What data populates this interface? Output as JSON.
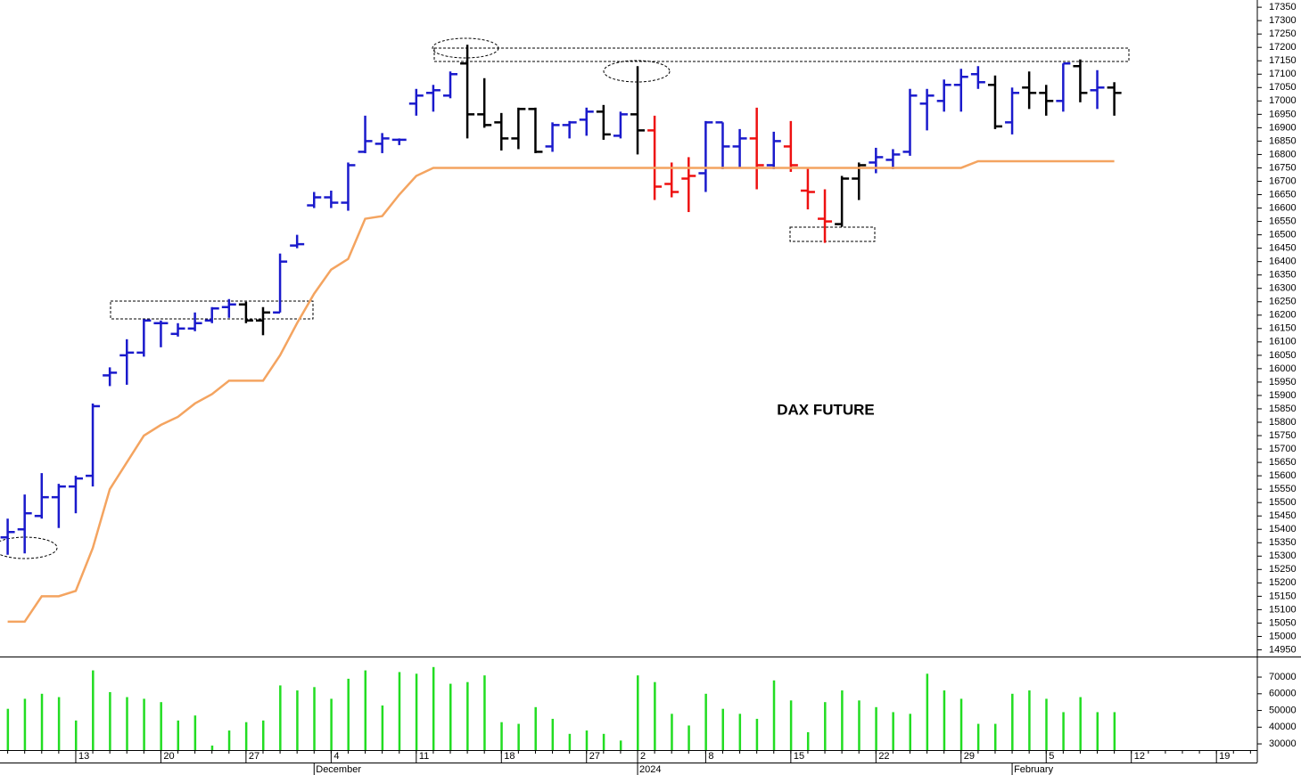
{
  "chart_data": [
    {
      "type": "ohlc",
      "title": "DAX FUTURE",
      "open": [
        15370,
        15400,
        15450,
        15520,
        15560,
        15600,
        15975,
        16050,
        16060,
        16170,
        16130,
        16150,
        16180,
        16230,
        16240,
        16180,
        16210,
        16460,
        16610,
        16640,
        16620,
        16810,
        16840,
        16855,
        16990,
        17030,
        17020,
        17140,
        16950,
        16920,
        16860,
        16970,
        16830,
        16910,
        16930,
        16960,
        16870,
        16950,
        16890,
        16690,
        16710,
        16730,
        16920,
        16830,
        16860,
        16760,
        16830,
        16665,
        16560,
        16540,
        16710,
        16770,
        16780,
        16810,
        16990,
        17000,
        17060,
        17100,
        17060,
        16920,
        17050,
        17030,
        17000,
        17130,
        17040,
        17050
      ],
      "high": [
        15440,
        15530,
        15610,
        15570,
        15600,
        15870,
        16005,
        16110,
        16185,
        16180,
        16170,
        16210,
        16230,
        16260,
        16250,
        16230,
        16430,
        16500,
        16660,
        16665,
        16770,
        16945,
        16880,
        16860,
        17045,
        17060,
        17110,
        17210,
        17085,
        16955,
        16975,
        16975,
        16920,
        16925,
        16975,
        16985,
        16960,
        17130,
        16945,
        16770,
        16790,
        16925,
        16920,
        16895,
        16975,
        16885,
        16925,
        16750,
        16670,
        16720,
        16770,
        16825,
        16820,
        17045,
        17045,
        17080,
        17120,
        17130,
        17095,
        17050,
        17110,
        17060,
        17140,
        17155,
        17115,
        17070
      ],
      "low": [
        15305,
        15310,
        15440,
        15405,
        15460,
        15560,
        15935,
        15940,
        16045,
        16080,
        16120,
        16140,
        16170,
        16190,
        16170,
        16125,
        16210,
        16450,
        16600,
        16600,
        16590,
        16805,
        16805,
        16835,
        16945,
        16960,
        17010,
        16860,
        16900,
        16815,
        16820,
        16805,
        16810,
        16860,
        16870,
        16855,
        16860,
        16800,
        16630,
        16640,
        16585,
        16660,
        16745,
        16750,
        16670,
        16745,
        16735,
        16595,
        16470,
        16530,
        16630,
        16730,
        16745,
        16795,
        16890,
        16960,
        16960,
        17045,
        16895,
        16875,
        16970,
        16945,
        16960,
        16995,
        16970,
        16945
      ],
      "close": [
        15390,
        15460,
        15520,
        15560,
        15590,
        15860,
        15985,
        16060,
        16180,
        16170,
        16150,
        16170,
        16225,
        16240,
        16180,
        16210,
        16400,
        16465,
        16640,
        16620,
        16760,
        16850,
        16860,
        16855,
        17020,
        17040,
        17100,
        16950,
        16910,
        16860,
        16970,
        16810,
        16910,
        16920,
        16960,
        16875,
        16950,
        16890,
        16680,
        16660,
        16720,
        16920,
        16830,
        16860,
        16760,
        16850,
        16760,
        16660,
        16550,
        16710,
        16760,
        16790,
        16800,
        17020,
        17020,
        17060,
        17090,
        17070,
        16905,
        17030,
        17030,
        17000,
        17140,
        17030,
        17050,
        17030
      ],
      "bar_colors": [
        "#1a1acc",
        "#1a1acc",
        "#1a1acc",
        "#1a1acc",
        "#1a1acc",
        "#1a1acc",
        "#1a1acc",
        "#1a1acc",
        "#1a1acc",
        "#1a1acc",
        "#1a1acc",
        "#1a1acc",
        "#1a1acc",
        "#1a1acc",
        "#000000",
        "#000000",
        "#1a1acc",
        "#1a1acc",
        "#1a1acc",
        "#1a1acc",
        "#1a1acc",
        "#1a1acc",
        "#1a1acc",
        "#1a1acc",
        "#1a1acc",
        "#1a1acc",
        "#1a1acc",
        "#000000",
        "#000000",
        "#000000",
        "#000000",
        "#000000",
        "#1a1acc",
        "#1a1acc",
        "#1a1acc",
        "#000000",
        "#1a1acc",
        "#000000",
        "#ee1111",
        "#ee1111",
        "#ee1111",
        "#1a1acc",
        "#1a1acc",
        "#1a1acc",
        "#ee1111",
        "#1a1acc",
        "#ee1111",
        "#ee1111",
        "#ee1111",
        "#000000",
        "#000000",
        "#1a1acc",
        "#1a1acc",
        "#1a1acc",
        "#1a1acc",
        "#1a1acc",
        "#1a1acc",
        "#1a1acc",
        "#000000",
        "#1a1acc",
        "#000000",
        "#000000",
        "#1a1acc",
        "#000000",
        "#1a1acc",
        "#000000"
      ],
      "line": {
        "color": "#f4a460",
        "values": [
          15055,
          15055,
          15150,
          15150,
          15170,
          15330,
          15550,
          15650,
          15750,
          15790,
          15820,
          15870,
          15905,
          15955,
          15955,
          15955,
          16050,
          16170,
          16280,
          16370,
          16410,
          16560,
          16570,
          16650,
          16720,
          16750,
          16750,
          16750,
          16750,
          16750,
          16750,
          16750,
          16750,
          16750,
          16750,
          16750,
          16750,
          16750,
          16750,
          16750,
          16750,
          16750,
          16750,
          16750,
          16750,
          16750,
          16750,
          16750,
          16750,
          16750,
          16750,
          16750,
          16750,
          16750,
          16750,
          16750,
          16750,
          16775,
          16775,
          16775,
          16775,
          16775,
          16775,
          16775,
          16775,
          16775
        ]
      },
      "xlim": [
        -0.45,
        73.4
      ],
      "ylim": [
        14925,
        17377
      ],
      "yticks": [
        14950,
        15000,
        15050,
        15100,
        15150,
        15200,
        15250,
        15300,
        15350,
        15400,
        15450,
        15500,
        15550,
        15600,
        15650,
        15700,
        15750,
        15800,
        15850,
        15900,
        15950,
        16000,
        16050,
        16100,
        16150,
        16200,
        16250,
        16300,
        16350,
        16400,
        16450,
        16500,
        16550,
        16600,
        16650,
        16700,
        16750,
        16800,
        16850,
        16900,
        16950,
        17000,
        17050,
        17100,
        17150,
        17200,
        17250,
        17300,
        17350
      ]
    },
    {
      "type": "volume",
      "color": "#22dd22",
      "values": [
        51000,
        57000,
        60000,
        58000,
        44000,
        74000,
        61000,
        58000,
        57000,
        55000,
        44000,
        47000,
        29000,
        38000,
        43000,
        44000,
        65000,
        62000,
        64000,
        57000,
        69000,
        74000,
        53000,
        73000,
        72000,
        76000,
        66000,
        67000,
        71000,
        43000,
        42000,
        52000,
        45000,
        36000,
        38000,
        36000,
        32000,
        71000,
        67000,
        48000,
        41000,
        60000,
        51000,
        48000,
        45000,
        68000,
        56000,
        37000,
        55000,
        62000,
        56000,
        52000,
        49000,
        48000,
        72000,
        62000,
        57000,
        42000,
        42000,
        60000,
        62000,
        57000,
        49000,
        58000,
        49000,
        49000
      ],
      "xlim": [
        -0.45,
        73.4
      ],
      "ylim": [
        26300,
        80700
      ],
      "yticks": [
        30000,
        40000,
        50000,
        60000,
        70000
      ],
      "xticks": [
        {
          "value": 4,
          "label": "13"
        },
        {
          "value": 9,
          "label": "20"
        },
        {
          "value": 14,
          "label": "27"
        },
        {
          "value": 19,
          "label": "4"
        },
        {
          "value": 24,
          "label": "11"
        },
        {
          "value": 29,
          "label": "18"
        },
        {
          "value": 34,
          "label": "27"
        },
        {
          "value": 37,
          "label": "2"
        },
        {
          "value": 41,
          "label": "8"
        },
        {
          "value": 46,
          "label": "15"
        },
        {
          "value": 51,
          "label": "22"
        },
        {
          "value": 56,
          "label": "29"
        },
        {
          "value": 61,
          "label": "5"
        },
        {
          "value": 66,
          "label": "12"
        },
        {
          "value": 71,
          "label": "19"
        }
      ],
      "month_ticks": [
        {
          "value": 18,
          "label": "December"
        },
        {
          "value": 37,
          "label": "2024"
        },
        {
          "value": 59,
          "label": "February"
        }
      ]
    }
  ]
}
